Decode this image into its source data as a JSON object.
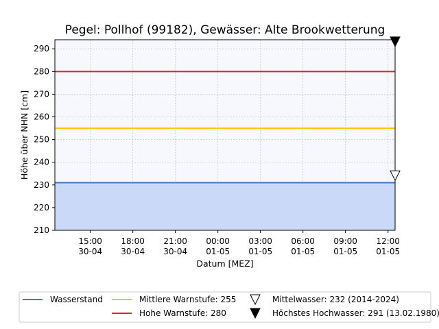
{
  "chart_data": {
    "type": "line",
    "title": "Pegel:  Pollhof (99182), Gewässer:  Alte Brookwetterung",
    "xlabel": "Datum [MEZ]",
    "ylabel": "Höhe über NHN [cm]",
    "ylim": [
      210,
      294
    ],
    "xlim_hours": [
      0,
      24
    ],
    "yticks": [
      210,
      220,
      230,
      240,
      250,
      260,
      270,
      280,
      290
    ],
    "xticks": [
      {
        "h": 2.5,
        "time": "15:00",
        "date": "30-04"
      },
      {
        "h": 5.5,
        "time": "18:00",
        "date": "30-04"
      },
      {
        "h": 8.5,
        "time": "21:00",
        "date": "30-04"
      },
      {
        "h": 11.5,
        "time": "00:00",
        "date": "01-05"
      },
      {
        "h": 14.5,
        "time": "03:00",
        "date": "01-05"
      },
      {
        "h": 17.5,
        "time": "06:00",
        "date": "01-05"
      },
      {
        "h": 20.5,
        "time": "09:00",
        "date": "01-05"
      },
      {
        "h": 23.5,
        "time": "12:00",
        "date": "01-05"
      }
    ],
    "grid": true,
    "series": [
      {
        "name": "Wasserstand",
        "color": "#4472c4",
        "fill": "#c9d9f7",
        "y": 231
      }
    ],
    "thresholds": [
      {
        "name": "Mittlere Warnstufe: 255",
        "value": 255,
        "color": "#ffc000"
      },
      {
        "name": "Hohe Warnstufe: 280",
        "value": 280,
        "color": "#d62728"
      }
    ],
    "markers": [
      {
        "name": "Mittelwasser: 232 (2014-2024)",
        "value": 232,
        "style": "hollow-down-triangle"
      },
      {
        "name": "Höchstes Hochwasser: 291 (13.02.1980)",
        "value": 291,
        "style": "filled-down-triangle"
      }
    ],
    "legend_position": "bottom"
  }
}
